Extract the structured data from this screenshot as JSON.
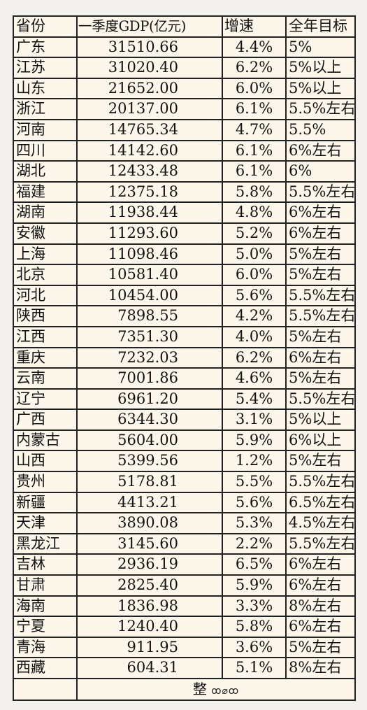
{
  "table": {
    "headers": [
      "省份",
      "一季度GDP(亿元)",
      "增速",
      "全年目标"
    ],
    "rows": [
      [
        "广东",
        "31510.66",
        "4.4%",
        "5%"
      ],
      [
        "江苏",
        "31020.40",
        "6.2%",
        "5%以上"
      ],
      [
        "山东",
        "21652.00",
        "6.0%",
        "5%以上"
      ],
      [
        "浙江",
        "20137.00",
        "6.1%",
        "5.5%左右"
      ],
      [
        "河南",
        "14765.34",
        "4.7%",
        "5.5%"
      ],
      [
        "四川",
        "14142.60",
        "6.1%",
        "6%左右"
      ],
      [
        "湖北",
        "12433.48",
        "6.1%",
        "6%"
      ],
      [
        "福建",
        "12375.18",
        "5.8%",
        "5.5%左右"
      ],
      [
        "湖南",
        "11938.44",
        "4.8%",
        "6%左右"
      ],
      [
        "安徽",
        "11293.60",
        "5.2%",
        "6%左右"
      ],
      [
        "上海",
        "11098.46",
        "5.0%",
        "5%左右"
      ],
      [
        "北京",
        "10581.40",
        "6.0%",
        "5%左右"
      ],
      [
        "河北",
        "10454.00",
        "5.6%",
        "5.5%左右"
      ],
      [
        "陕西",
        "7898.55",
        "4.2%",
        "5.5%左右"
      ],
      [
        "江西",
        "7351.30",
        "4.0%",
        "5%左右"
      ],
      [
        "重庆",
        "7232.03",
        "6.2%",
        "6%左右"
      ],
      [
        "云南",
        "7001.86",
        "4.6%",
        "5%左右"
      ],
      [
        "辽宁",
        "6961.20",
        "5.4%",
        "5.5%左右"
      ],
      [
        "广西",
        "6344.30",
        "3.1%",
        "5%以上"
      ],
      [
        "内蒙古",
        "5604.00",
        "5.9%",
        "6%以上"
      ],
      [
        "山西",
        "5399.56",
        "1.2%",
        "5%左右"
      ],
      [
        "贵州",
        "5178.81",
        "5.5%",
        "5.5%左右"
      ],
      [
        "新疆",
        "4413.21",
        "5.6%",
        "6.5%左右"
      ],
      [
        "天津",
        "3890.08",
        "5.3%",
        "4.5%左右"
      ],
      [
        "黑龙江",
        "3145.60",
        "2.2%",
        "5.5%左右"
      ],
      [
        "吉林",
        "2936.19",
        "6.5%",
        "6%左右"
      ],
      [
        "甘肃",
        "2825.40",
        "5.9%",
        "6%左右"
      ],
      [
        "海南",
        "1836.98",
        "3.3%",
        "8%左右"
      ],
      [
        "宁夏",
        "1240.40",
        "5.8%",
        "6%左右"
      ],
      [
        "青海",
        "911.95",
        "3.6%",
        "5%左右"
      ],
      [
        "西藏",
        "604.31",
        "5.1%",
        "8%左右"
      ]
    ],
    "footer": {
      "text": "整",
      "scribble": "ꝏ⌀ꝏ"
    }
  }
}
